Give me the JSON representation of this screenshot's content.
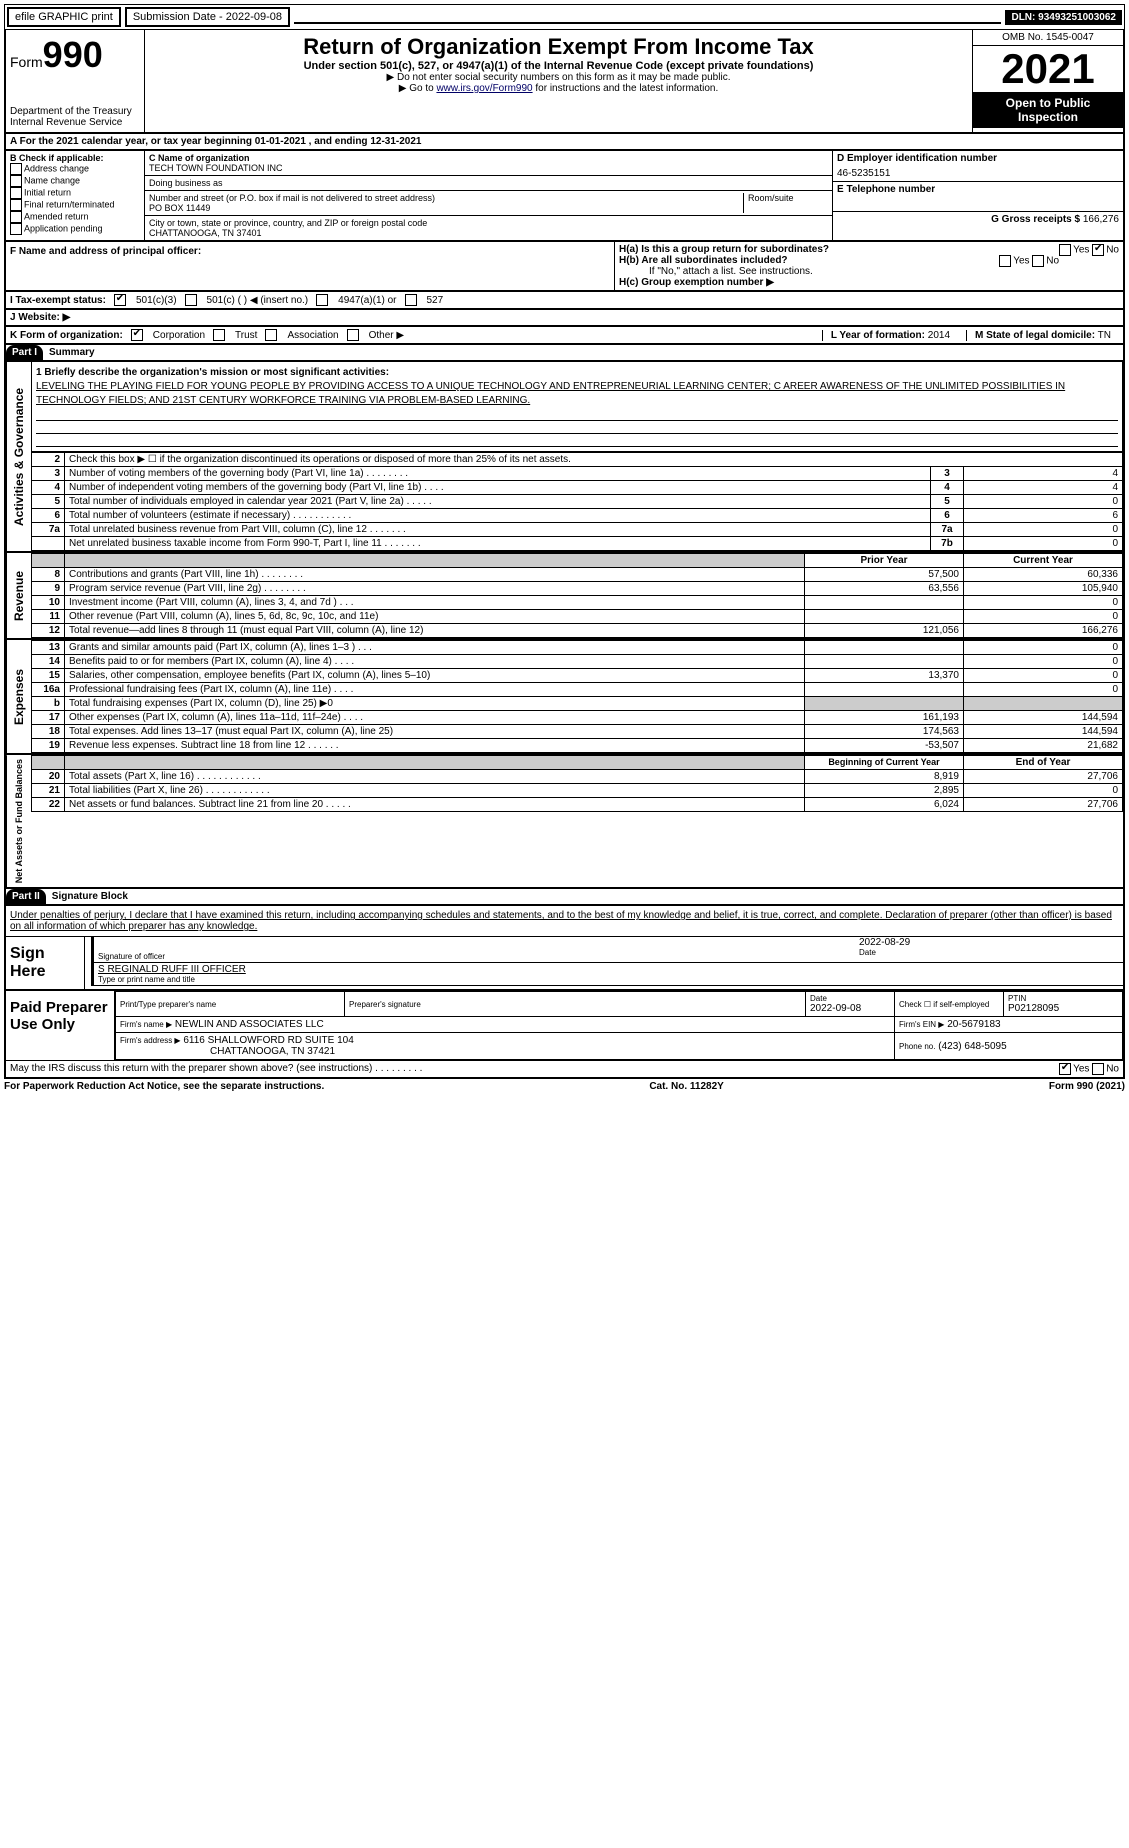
{
  "topbar": {
    "efile": "efile GRAPHIC print",
    "submission_label": "Submission Date - 2022-09-08",
    "dln": "DLN: 93493251003062"
  },
  "header": {
    "form_prefix": "Form",
    "form_no": "990",
    "dept": "Department of the Treasury",
    "irs": "Internal Revenue Service",
    "title": "Return of Organization Exempt From Income Tax",
    "sub": "Under section 501(c), 527, or 4947(a)(1) of the Internal Revenue Code (except private foundations)",
    "note1": "▶ Do not enter social security numbers on this form as it may be made public.",
    "note2_pre": "▶ Go to ",
    "note2_link": "www.irs.gov/Form990",
    "note2_post": " for instructions and the latest information.",
    "omb": "OMB No. 1545-0047",
    "year": "2021",
    "openpub": "Open to Public Inspection"
  },
  "sectionA": "A For the 2021 calendar year, or tax year beginning 01-01-2021     , and ending 12-31-2021",
  "B": {
    "label": "B Check if applicable:",
    "items": [
      "Address change",
      "Name change",
      "Initial return",
      "Final return/terminated",
      "Amended return",
      "Application pending"
    ]
  },
  "C": {
    "name_label": "C Name of organization",
    "name": "TECH TOWN FOUNDATION INC",
    "dba_label": "Doing business as",
    "street_label": "Number and street (or P.O. box if mail is not delivered to street address)",
    "room_label": "Room/suite",
    "street": "PO BOX 11449",
    "city_label": "City or town, state or province, country, and ZIP or foreign postal code",
    "city": "CHATTANOOGA, TN  37401"
  },
  "D": {
    "label": "D Employer identification number",
    "value": "46-5235151"
  },
  "E": {
    "label": "E Telephone number",
    "value": ""
  },
  "G": {
    "label": "G Gross receipts $",
    "value": "166,276"
  },
  "F": {
    "label": "F  Name and address of principal officer:"
  },
  "H": {
    "a": "H(a)  Is this a group return for subordinates?",
    "a_yes": "Yes",
    "a_no": "No",
    "b": "H(b)  Are all subordinates included?",
    "b_yes": "Yes",
    "b_no": "No",
    "b_note": "If \"No,\" attach a list. See instructions.",
    "c": "H(c)  Group exemption number ▶"
  },
  "I": {
    "label": "I  Tax-exempt status:",
    "o1": "501(c)(3)",
    "o2": "501(c) (   ) ◀ (insert no.)",
    "o3": "4947(a)(1) or",
    "o4": "527"
  },
  "J": {
    "label": "J  Website: ▶"
  },
  "K": {
    "label": "K Form of organization:",
    "o1": "Corporation",
    "o2": "Trust",
    "o3": "Association",
    "o4": "Other ▶"
  },
  "L": {
    "label": "L Year of formation:",
    "value": "2014"
  },
  "M": {
    "label": "M State of legal domicile:",
    "value": "TN"
  },
  "part1": {
    "hdr": "Part I",
    "title": "Summary"
  },
  "summary": {
    "line1_label": "1  Briefly describe the organization's mission or most significant activities:",
    "mission": "LEVELING THE PLAYING FIELD FOR YOUNG PEOPLE BY PROVIDING ACCESS TO A UNIQUE TECHNOLOGY AND ENTREPRENEURIAL LEARNING CENTER; C AREER AWARENESS OF THE UNLIMITED POSSIBILITIES IN TECHNOLOGY FIELDS; AND 21ST CENTURY WORKFORCE TRAINING VIA PROBLEM-BASED LEARNING.",
    "line2": "Check this box ▶ ☐  if the organization discontinued its operations or disposed of more than 25% of its net assets.",
    "rows_gov": [
      {
        "n": "3",
        "t": "Number of voting members of the governing body (Part VI, line 1a)   .    .    .    .    .    .    .    .",
        "b": "3",
        "v": "4"
      },
      {
        "n": "4",
        "t": "Number of independent voting members of the governing body (Part VI, line 1b)   .    .    .    .",
        "b": "4",
        "v": "4"
      },
      {
        "n": "5",
        "t": "Total number of individuals employed in calendar year 2021 (Part V, line 2a)   .    .    .    .    .",
        "b": "5",
        "v": "0"
      },
      {
        "n": "6",
        "t": "Total number of volunteers (estimate if necessary)    .    .    .    .    .    .    .    .    .    .    .",
        "b": "6",
        "v": "6"
      },
      {
        "n": "7a",
        "t": "Total unrelated business revenue from Part VIII, column (C), line 12   .    .    .    .    .    .    .",
        "b": "7a",
        "v": "0"
      },
      {
        "n": "",
        "t": "Net unrelated business taxable income from Form 990-T, Part I, line 11   .    .    .    .    .    .    .",
        "b": "7b",
        "v": "0"
      }
    ],
    "prior_hdr": "Prior Year",
    "current_hdr": "Current Year",
    "rows_rev": [
      {
        "n": "8",
        "t": "Contributions and grants (Part VIII, line 1h)   .    .    .    .    .    .    .    .",
        "p": "57,500",
        "c": "60,336"
      },
      {
        "n": "9",
        "t": "Program service revenue (Part VIII, line 2g)   .    .    .    .    .    .    .    .",
        "p": "63,556",
        "c": "105,940"
      },
      {
        "n": "10",
        "t": "Investment income (Part VIII, column (A), lines 3, 4, and 7d )    .    .    .",
        "p": "",
        "c": "0"
      },
      {
        "n": "11",
        "t": "Other revenue (Part VIII, column (A), lines 5, 6d, 8c, 9c, 10c, and 11e)",
        "p": "",
        "c": "0"
      },
      {
        "n": "12",
        "t": "Total revenue—add lines 8 through 11 (must equal Part VIII, column (A), line 12)",
        "p": "121,056",
        "c": "166,276"
      }
    ],
    "rows_exp": [
      {
        "n": "13",
        "t": "Grants and similar amounts paid (Part IX, column (A), lines 1–3 )   .    .    .",
        "p": "",
        "c": "0"
      },
      {
        "n": "14",
        "t": "Benefits paid to or for members (Part IX, column (A), line 4)   .    .    .    .",
        "p": "",
        "c": "0"
      },
      {
        "n": "15",
        "t": "Salaries, other compensation, employee benefits (Part IX, column (A), lines 5–10)",
        "p": "13,370",
        "c": "0"
      },
      {
        "n": "16a",
        "t": "Professional fundraising fees (Part IX, column (A), line 11e)    .    .    .    .",
        "p": "",
        "c": "0"
      },
      {
        "n": "b",
        "t": "Total fundraising expenses (Part IX, column (D), line 25) ▶0",
        "p": "gray",
        "c": "gray"
      },
      {
        "n": "17",
        "t": "Other expenses (Part IX, column (A), lines 11a–11d, 11f–24e)    .    .    .    .",
        "p": "161,193",
        "c": "144,594"
      },
      {
        "n": "18",
        "t": "Total expenses. Add lines 13–17 (must equal Part IX, column (A), line 25)",
        "p": "174,563",
        "c": "144,594"
      },
      {
        "n": "19",
        "t": "Revenue less expenses. Subtract line 18 from line 12   .    .    .    .    .    .",
        "p": "-53,507",
        "c": "21,682"
      }
    ],
    "begin_hdr": "Beginning of Current Year",
    "end_hdr": "End of Year",
    "rows_net": [
      {
        "n": "20",
        "t": "Total assets (Part X, line 16)   .    .    .    .    .    .    .    .    .    .    .    .",
        "p": "8,919",
        "c": "27,706"
      },
      {
        "n": "21",
        "t": "Total liabilities (Part X, line 26)   .    .    .    .    .    .    .    .    .    .    .    .",
        "p": "2,895",
        "c": "0"
      },
      {
        "n": "22",
        "t": "Net assets or fund balances. Subtract line 21 from line 20   .    .    .    .    .",
        "p": "6,024",
        "c": "27,706"
      }
    ]
  },
  "side": {
    "gov": "Activities & Governance",
    "rev": "Revenue",
    "exp": "Expenses",
    "net": "Net Assets or Fund Balances"
  },
  "part2": {
    "hdr": "Part II",
    "title": "Signature Block"
  },
  "sig": {
    "penalty": "Under penalties of perjury, I declare that I have examined this return, including accompanying schedules and statements, and to the best of my knowledge and belief, it is true, correct, and complete. Declaration of preparer (other than officer) is based on all information of which preparer has any knowledge.",
    "sign_here": "Sign Here",
    "sig_officer": "Signature of officer",
    "date": "2022-08-29",
    "date_label": "Date",
    "name": "S REGINALD RUFF III  OFFICER",
    "name_label": "Type or print name and title",
    "paid": "Paid Preparer Use Only",
    "pt_name_label": "Print/Type preparer's name",
    "pt_sig_label": "Preparer's signature",
    "pt_date_label": "Date",
    "pt_date": "2022-09-08",
    "check_label": "Check ☐ if self-employed",
    "ptin_label": "PTIN",
    "ptin": "P02128095",
    "firm_name_label": "Firm's name    ▶",
    "firm_name": "NEWLIN AND ASSOCIATES LLC",
    "firm_ein_label": "Firm's EIN ▶",
    "firm_ein": "20-5679183",
    "firm_addr_label": "Firm's address ▶",
    "firm_addr1": "6116 SHALLOWFORD RD SUITE 104",
    "firm_addr2": "CHATTANOOGA, TN  37421",
    "phone_label": "Phone no.",
    "phone": "(423) 648-5095",
    "discuss": "May the IRS discuss this return with the preparer shown above? (see instructions)   .    .    .    .    .    .    .    .    .",
    "discuss_yes": "Yes",
    "discuss_no": "No"
  },
  "footer": {
    "left": "For Paperwork Reduction Act Notice, see the separate instructions.",
    "mid": "Cat. No. 11282Y",
    "right": "Form 990 (2021)"
  }
}
